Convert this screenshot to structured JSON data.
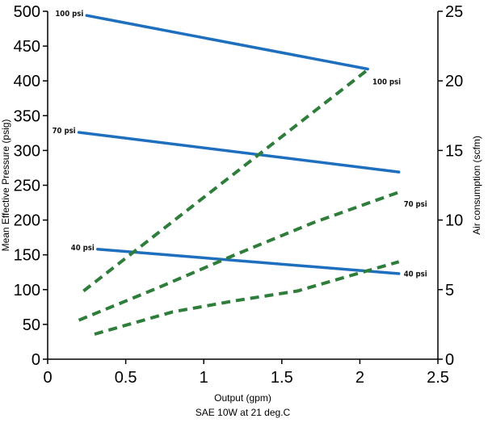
{
  "chart_data": {
    "type": "line",
    "xlabel": "Output (gpm)",
    "xlabel2": "SAE 10W at 21 deg.C",
    "ylabel_left": "Mean Effective Pressure (psig)",
    "ylabel_right": "Air consumption (scfm)",
    "xlim": [
      0,
      2.5
    ],
    "ylim_left": [
      0,
      500
    ],
    "ylim_right": [
      0,
      25
    ],
    "x_ticks": [
      "0",
      "0.5",
      "1",
      "1.5",
      "2",
      "2.5"
    ],
    "y_left_ticks": [
      "0",
      "50",
      "100",
      "150",
      "200",
      "250",
      "300",
      "350",
      "400",
      "450",
      "500"
    ],
    "y_right_ticks": [
      "0",
      "5",
      "10",
      "15",
      "20",
      "25"
    ],
    "grid": false,
    "pressure_series": [
      {
        "name": "100 psi",
        "color": "#1f6fbf",
        "x": [
          0.25,
          2.05
        ],
        "y": [
          494,
          417
        ]
      },
      {
        "name": "70 psi",
        "color": "#1f6fbf",
        "x": [
          0.2,
          2.25
        ],
        "y": [
          326,
          269
        ]
      },
      {
        "name": "40 psi",
        "color": "#1f6fbf",
        "x": [
          0.32,
          2.25
        ],
        "y": [
          158,
          123
        ]
      }
    ],
    "air_series": [
      {
        "name": "100 psi",
        "color": "#2e7d3a",
        "x": [
          0.23,
          2.05
        ],
        "y": [
          4.9,
          20.8
        ]
      },
      {
        "name": "70 psi",
        "color": "#2e7d3a",
        "x": [
          0.2,
          0.7,
          1.2,
          1.7,
          2.25
        ],
        "y": [
          2.8,
          5.1,
          7.5,
          9.8,
          12.0
        ]
      },
      {
        "name": "40 psi",
        "color": "#2e7d3a",
        "x": [
          0.3,
          0.8,
          1.2,
          1.6,
          2.0,
          2.25
        ],
        "y": [
          1.8,
          3.4,
          4.2,
          4.9,
          6.2,
          7.0
        ]
      }
    ]
  }
}
